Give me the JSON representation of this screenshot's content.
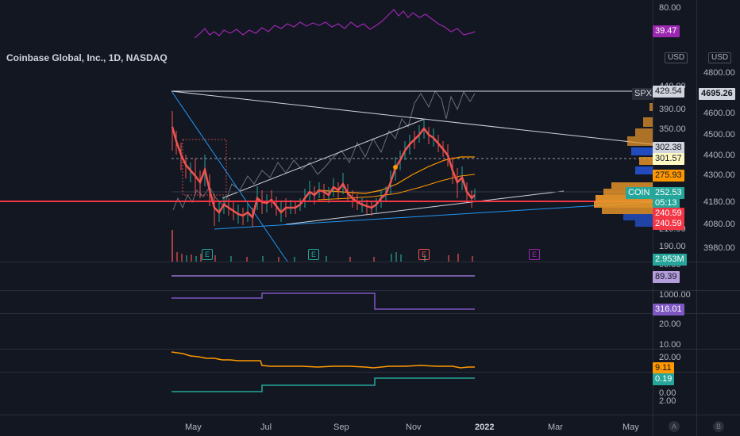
{
  "header": {
    "title": "Coinbase Global, Inc., 1D, NASDAQ",
    "currency_left": "USD",
    "currency_right": "USD"
  },
  "left_axis": {
    "rsi_ticks": [
      "80.00"
    ],
    "price_ticks": [
      "440.00",
      "390.00",
      "350.00",
      "210.00",
      "190.00"
    ],
    "pane2_ticks": [
      "90.00"
    ],
    "pane3_ticks": [
      "1000.00"
    ],
    "pane4_ticks": [
      "20.00",
      "10.00",
      "20.00"
    ],
    "pane5_ticks": [
      "0.00",
      "2.00"
    ]
  },
  "right_axis": {
    "ticks": [
      "4800.00",
      "4600.00",
      "4500.00",
      "4400.00",
      "4300.00",
      "4180.00",
      "4080.00",
      "3980.00"
    ]
  },
  "labels": {
    "rsi_value": "39.47",
    "spx_label": "SPX",
    "spx_high": "429.54",
    "spx_value": "4695.26",
    "ma1": "302.38",
    "dashed_level": "301.57",
    "ma2": "275.93",
    "symbol": "COIN",
    "last_price": "252.53",
    "countdown": "05:13",
    "red_level_1": "240.59",
    "red_level_2": "240.59",
    "volume": "2.953M",
    "pane2_value": "89.39",
    "pane3_value": "316.01",
    "pane4_value": "9.11",
    "pane5_value": "0.19"
  },
  "events": [
    "E",
    "E",
    "E",
    "E"
  ],
  "x_axis": [
    "May",
    "Jul",
    "Sep",
    "Nov",
    "2022",
    "Mar",
    "May"
  ],
  "scale_buttons": [
    "A",
    "B"
  ],
  "colors": {
    "background": "#131722",
    "up": "#26a69a",
    "down": "#ef5350",
    "rsi": "#9c27b0",
    "orange": "#ff9800",
    "violet": "#7e57c2",
    "teal": "#26a69a",
    "red_line": "#f23645"
  }
}
